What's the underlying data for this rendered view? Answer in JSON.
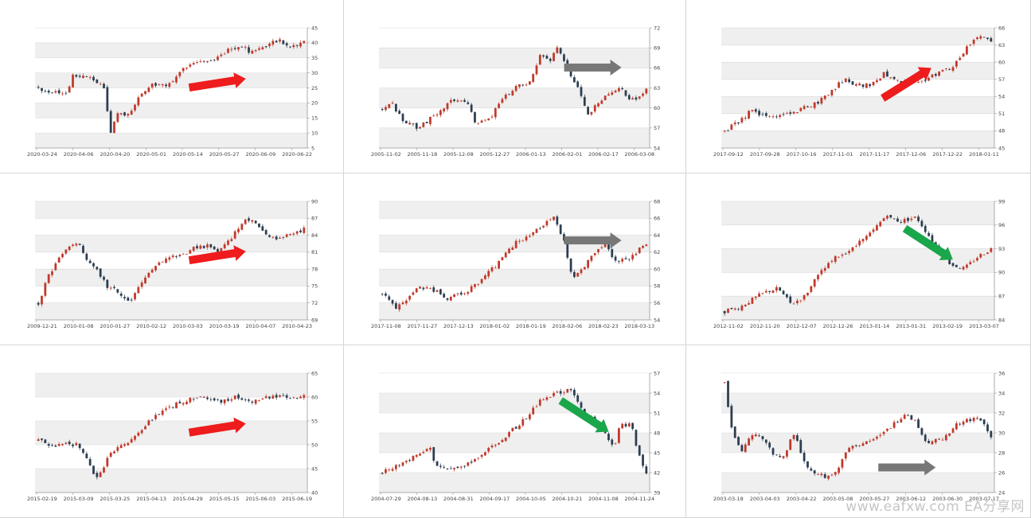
{
  "colors": {
    "up": "#c0392b",
    "down": "#2c3e50",
    "band": "#efefef",
    "arrow_up": "#ee1c1c",
    "arrow_flat": "#777777",
    "arrow_down": "#1aa64a"
  },
  "watermark": "www.eafxw.com  EA分享网",
  "chart_data": [
    {
      "type": "candlestick",
      "yticks": [
        5,
        10,
        15,
        20,
        25,
        30,
        35,
        40,
        45
      ],
      "ylim": [
        5,
        45
      ],
      "xticks": [
        "2020-03-24",
        "2020-04-06",
        "2020-04-20",
        "2020-05-01",
        "2020-05-14",
        "2020-05-27",
        "2020-06-09",
        "2020-06-22"
      ],
      "trend": "up",
      "arrow_color": "red",
      "path": [
        [
          0,
          25
        ],
        [
          0.08,
          23
        ],
        [
          0.11,
          23
        ],
        [
          0.13,
          29
        ],
        [
          0.18,
          29
        ],
        [
          0.2,
          28
        ],
        [
          0.25,
          25
        ],
        [
          0.27,
          10
        ],
        [
          0.3,
          17
        ],
        [
          0.34,
          16
        ],
        [
          0.38,
          22
        ],
        [
          0.42,
          26
        ],
        [
          0.5,
          26
        ],
        [
          0.53,
          30
        ],
        [
          0.57,
          33
        ],
        [
          0.66,
          34
        ],
        [
          0.72,
          38
        ],
        [
          0.76,
          39
        ],
        [
          0.8,
          37
        ],
        [
          0.86,
          39
        ],
        [
          0.9,
          41
        ],
        [
          0.94,
          39
        ],
        [
          1,
          40
        ]
      ]
    },
    {
      "type": "candlestick",
      "yticks": [
        54,
        57,
        60,
        63,
        66,
        69,
        72
      ],
      "ylim": [
        54,
        72
      ],
      "xticks": [
        "2005-11-02",
        "2005-11-18",
        "2005-12-08",
        "2005-12-27",
        "2006-01-13",
        "2006-02-01",
        "2006-02-17",
        "2006-03-08"
      ],
      "trend": "flat",
      "arrow_color": "gray",
      "path": [
        [
          0,
          60
        ],
        [
          0.03,
          61
        ],
        [
          0.08,
          58
        ],
        [
          0.14,
          57
        ],
        [
          0.2,
          59
        ],
        [
          0.26,
          61
        ],
        [
          0.32,
          61
        ],
        [
          0.35,
          58
        ],
        [
          0.4,
          58
        ],
        [
          0.45,
          61
        ],
        [
          0.5,
          63
        ],
        [
          0.56,
          64
        ],
        [
          0.6,
          68
        ],
        [
          0.64,
          67
        ],
        [
          0.66,
          69
        ],
        [
          0.7,
          66
        ],
        [
          0.74,
          63
        ],
        [
          0.78,
          59
        ],
        [
          0.82,
          61
        ],
        [
          0.86,
          62
        ],
        [
          0.9,
          63
        ],
        [
          0.94,
          61
        ],
        [
          0.98,
          62
        ],
        [
          1,
          63
        ]
      ]
    },
    {
      "type": "candlestick",
      "yticks": [
        45,
        48,
        51,
        54,
        57,
        60,
        63,
        66
      ],
      "ylim": [
        45,
        66
      ],
      "xticks": [
        "2017-09-12",
        "2017-09-28",
        "2017-10-16",
        "2017-11-01",
        "2017-11-17",
        "2017-12-06",
        "2017-12-22",
        "2018-01-11"
      ],
      "trend": "up",
      "arrow_color": "red",
      "path": [
        [
          0,
          48
        ],
        [
          0.05,
          49.5
        ],
        [
          0.1,
          51.5
        ],
        [
          0.15,
          50.5
        ],
        [
          0.2,
          50.5
        ],
        [
          0.3,
          52
        ],
        [
          0.35,
          53
        ],
        [
          0.4,
          55
        ],
        [
          0.45,
          57
        ],
        [
          0.5,
          56
        ],
        [
          0.55,
          56
        ],
        [
          0.6,
          58
        ],
        [
          0.65,
          57
        ],
        [
          0.68,
          56
        ],
        [
          0.75,
          57
        ],
        [
          0.8,
          58
        ],
        [
          0.85,
          59
        ],
        [
          0.9,
          62
        ],
        [
          0.94,
          64
        ],
        [
          0.97,
          64.5
        ],
        [
          1,
          63.5
        ]
      ]
    },
    {
      "type": "candlestick",
      "yticks": [
        69,
        72,
        75,
        78,
        81,
        84,
        87,
        90
      ],
      "ylim": [
        69,
        90
      ],
      "xticks": [
        "2009-12-21",
        "2010-01-08",
        "2010-01-27",
        "2010-02-12",
        "2010-03-03",
        "2010-03-19",
        "2010-04-07",
        "2010-04-23"
      ],
      "trend": "up",
      "arrow_color": "red",
      "path": [
        [
          0,
          72
        ],
        [
          0.04,
          77
        ],
        [
          0.08,
          80
        ],
        [
          0.12,
          82
        ],
        [
          0.15,
          83
        ],
        [
          0.18,
          80
        ],
        [
          0.22,
          78
        ],
        [
          0.26,
          75
        ],
        [
          0.3,
          74
        ],
        [
          0.34,
          72
        ],
        [
          0.38,
          75
        ],
        [
          0.42,
          78
        ],
        [
          0.46,
          79
        ],
        [
          0.5,
          80
        ],
        [
          0.56,
          81
        ],
        [
          0.6,
          82
        ],
        [
          0.64,
          82
        ],
        [
          0.68,
          81
        ],
        [
          0.72,
          83
        ],
        [
          0.78,
          87
        ],
        [
          0.82,
          86
        ],
        [
          0.86,
          84
        ],
        [
          0.9,
          83
        ],
        [
          0.94,
          84
        ],
        [
          1,
          85
        ]
      ]
    },
    {
      "type": "candlestick",
      "yticks": [
        54,
        56,
        58,
        60,
        62,
        64,
        66,
        68
      ],
      "ylim": [
        54,
        68
      ],
      "xticks": [
        "2017-11-08",
        "2017-11-27",
        "2017-12-13",
        "2018-01-02",
        "2018-01-19",
        "2018-02-06",
        "2018-02-23",
        "2018-03-13"
      ],
      "trend": "flat",
      "arrow_color": "gray",
      "path": [
        [
          0,
          57
        ],
        [
          0.05,
          55.5
        ],
        [
          0.1,
          56.5
        ],
        [
          0.14,
          58
        ],
        [
          0.2,
          57.5
        ],
        [
          0.24,
          56.5
        ],
        [
          0.3,
          57
        ],
        [
          0.35,
          58
        ],
        [
          0.4,
          59.5
        ],
        [
          0.45,
          61
        ],
        [
          0.5,
          63
        ],
        [
          0.56,
          64
        ],
        [
          0.6,
          65
        ],
        [
          0.65,
          66
        ],
        [
          0.69,
          63
        ],
        [
          0.72,
          59
        ],
        [
          0.76,
          60
        ],
        [
          0.8,
          62
        ],
        [
          0.84,
          63
        ],
        [
          0.88,
          61
        ],
        [
          0.92,
          61
        ],
        [
          0.96,
          62
        ],
        [
          1,
          63
        ]
      ]
    },
    {
      "type": "candlestick",
      "yticks": [
        84,
        87,
        90,
        93,
        96,
        99
      ],
      "ylim": [
        84,
        99
      ],
      "xticks": [
        "2012-11-02",
        "2012-11-20",
        "2012-12-07",
        "2012-12-26",
        "2013-01-14",
        "2013-01-31",
        "2013-02-19",
        "2013-03-07"
      ],
      "trend": "down",
      "arrow_color": "green",
      "path": [
        [
          0,
          85
        ],
        [
          0.05,
          85.5
        ],
        [
          0.1,
          86.5
        ],
        [
          0.15,
          87.5
        ],
        [
          0.2,
          88
        ],
        [
          0.25,
          86
        ],
        [
          0.3,
          87
        ],
        [
          0.36,
          90
        ],
        [
          0.42,
          92
        ],
        [
          0.48,
          93
        ],
        [
          0.55,
          95
        ],
        [
          0.6,
          97
        ],
        [
          0.66,
          96.5
        ],
        [
          0.72,
          97
        ],
        [
          0.76,
          95
        ],
        [
          0.8,
          93
        ],
        [
          0.85,
          91
        ],
        [
          0.9,
          90.5
        ],
        [
          0.95,
          92
        ],
        [
          1,
          93
        ]
      ]
    },
    {
      "type": "candlestick",
      "yticks": [
        40,
        45,
        50,
        55,
        60,
        65
      ],
      "ylim": [
        40,
        65
      ],
      "xticks": [
        "2015-02-19",
        "2015-03-09",
        "2015-03-25",
        "2015-04-13",
        "2015-04-29",
        "2015-05-15",
        "2015-06-03",
        "2015-06-19"
      ],
      "trend": "up",
      "arrow_color": "red",
      "path": [
        [
          0,
          51
        ],
        [
          0.05,
          49.5
        ],
        [
          0.1,
          50
        ],
        [
          0.15,
          50
        ],
        [
          0.2,
          45
        ],
        [
          0.22,
          43
        ],
        [
          0.26,
          47
        ],
        [
          0.3,
          50
        ],
        [
          0.35,
          51
        ],
        [
          0.4,
          54
        ],
        [
          0.45,
          56.5
        ],
        [
          0.5,
          58
        ],
        [
          0.56,
          59.5
        ],
        [
          0.62,
          60
        ],
        [
          0.68,
          59
        ],
        [
          0.74,
          60
        ],
        [
          0.8,
          59
        ],
        [
          0.86,
          60
        ],
        [
          0.92,
          60
        ],
        [
          1,
          60
        ]
      ]
    },
    {
      "type": "candlestick",
      "yticks": [
        39,
        42,
        45,
        48,
        51,
        54,
        57
      ],
      "ylim": [
        39,
        57
      ],
      "xticks": [
        "2004-07-29",
        "2004-08-13",
        "2004-08-31",
        "2004-09-17",
        "2004-10-05",
        "2004-10-21",
        "2004-11-08",
        "2004-11-24"
      ],
      "trend": "down",
      "arrow_color": "green",
      "path": [
        [
          0,
          42
        ],
        [
          0.06,
          43
        ],
        [
          0.12,
          44.5
        ],
        [
          0.18,
          46
        ],
        [
          0.2,
          43
        ],
        [
          0.24,
          42.5
        ],
        [
          0.3,
          43
        ],
        [
          0.35,
          44
        ],
        [
          0.42,
          46
        ],
        [
          0.48,
          48
        ],
        [
          0.54,
          50
        ],
        [
          0.6,
          53
        ],
        [
          0.66,
          54
        ],
        [
          0.72,
          54.5
        ],
        [
          0.76,
          51
        ],
        [
          0.8,
          50
        ],
        [
          0.84,
          48
        ],
        [
          0.88,
          46
        ],
        [
          0.9,
          49
        ],
        [
          0.94,
          49.5
        ],
        [
          0.97,
          45
        ],
        [
          1,
          42
        ]
      ]
    },
    {
      "type": "candlestick",
      "yticks": [
        24,
        26,
        28,
        30,
        32,
        34,
        36
      ],
      "ylim": [
        24,
        36
      ],
      "xticks": [
        "2003-03-18",
        "2003-04-03",
        "2003-04-22",
        "2003-05-08",
        "2003-05-27",
        "2003-06-12",
        "2003-06-30",
        "2003-07-17"
      ],
      "trend": "flat",
      "arrow_color": "gray",
      "path": [
        [
          0,
          35
        ],
        [
          0.02,
          31
        ],
        [
          0.06,
          28
        ],
        [
          0.1,
          30
        ],
        [
          0.14,
          29.5
        ],
        [
          0.18,
          28
        ],
        [
          0.22,
          27.5
        ],
        [
          0.26,
          30
        ],
        [
          0.3,
          27
        ],
        [
          0.34,
          26
        ],
        [
          0.38,
          25.5
        ],
        [
          0.42,
          26
        ],
        [
          0.46,
          28.5
        ],
        [
          0.52,
          29
        ],
        [
          0.58,
          29.5
        ],
        [
          0.64,
          31
        ],
        [
          0.68,
          32
        ],
        [
          0.72,
          31
        ],
        [
          0.76,
          29
        ],
        [
          0.82,
          29.5
        ],
        [
          0.88,
          31
        ],
        [
          0.94,
          31.5
        ],
        [
          0.97,
          31
        ],
        [
          1,
          29.5
        ]
      ]
    }
  ]
}
